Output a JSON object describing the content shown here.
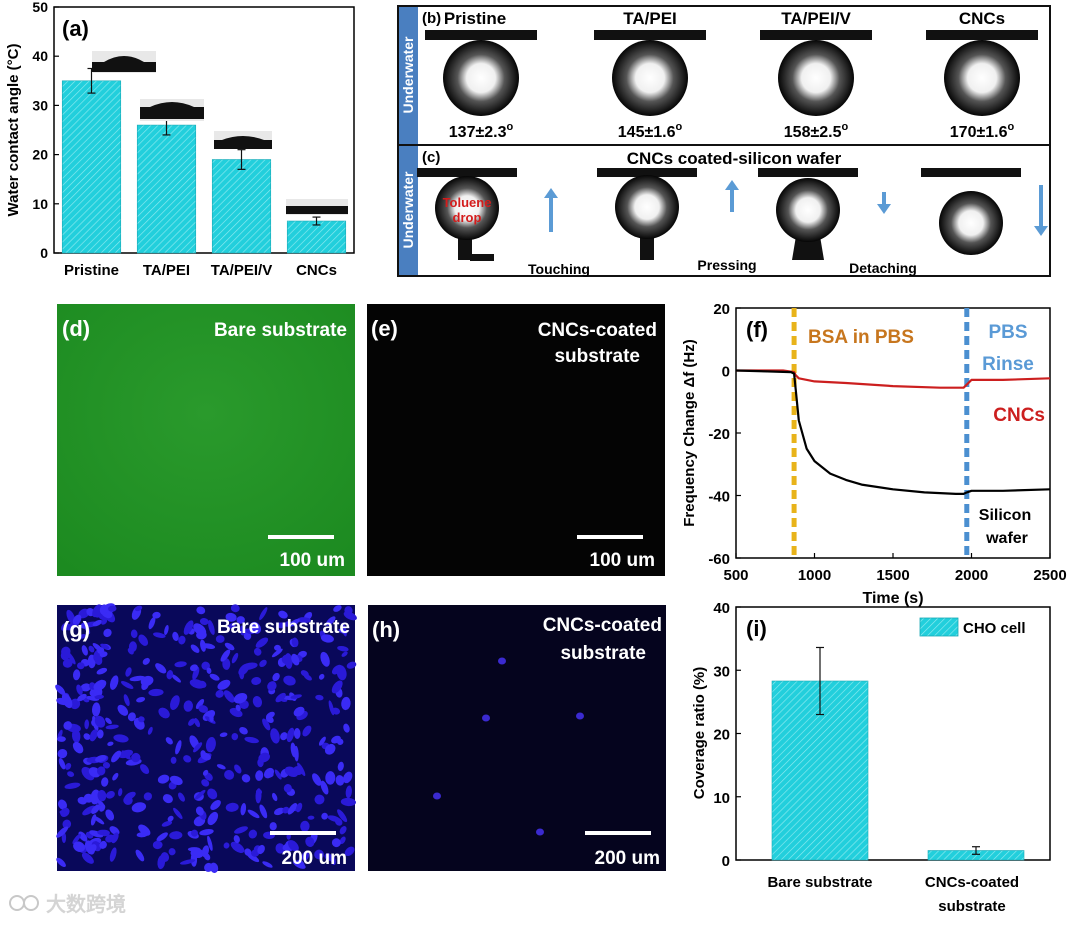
{
  "colors": {
    "cyan": "#22cfdc",
    "green": "#1f8a22",
    "blue_cell": "#2f1ee6",
    "red": "#cc1f1f",
    "orange": "#e8b31a",
    "dot_blue": "#4b8fd0",
    "text_orange": "#c7761e",
    "text_blue": "#5a9ad6"
  },
  "watermark": "大数跨境",
  "chart_data": [
    {
      "id": "a",
      "type": "bar",
      "panel_label": "(a)",
      "ylabel": "Water contact angle (°C)",
      "ylim": [
        0,
        50
      ],
      "yticks": [
        0,
        10,
        20,
        30,
        40,
        50
      ],
      "categories": [
        "Pristine",
        "TA/PEI",
        "TA/PEI/V",
        "CNCs"
      ],
      "values": [
        35,
        26,
        19,
        6.5
      ],
      "errors": [
        2.5,
        2,
        2,
        0.8
      ]
    },
    {
      "id": "b",
      "type": "image-row",
      "panel_label": "(b)",
      "side_label": "Underwater",
      "titles": [
        "Pristine",
        "TA/PEI",
        "TA/PEI/V",
        "CNCs"
      ],
      "angles": [
        "137±2.3",
        "145±1.6",
        "158±2.5",
        "170±1.6"
      ],
      "degree_mark": "o"
    },
    {
      "id": "c",
      "type": "image-row",
      "panel_label": "(c)",
      "side_label": "Underwater",
      "title": "CNCs coated-silicon wafer",
      "drop_label": "Toluene drop",
      "steps": [
        "Touching",
        "Pressing",
        "Detaching"
      ]
    },
    {
      "id": "d",
      "type": "micrograph",
      "panel_label": "(d)",
      "title": "Bare substrate",
      "scale": "100 um"
    },
    {
      "id": "e",
      "type": "micrograph",
      "panel_label": "(e)",
      "title": "CNCs-coated substrate",
      "title_lines": [
        "CNCs-coated",
        "substrate"
      ],
      "scale": "100 um"
    },
    {
      "id": "f",
      "type": "line",
      "panel_label": "(f)",
      "xlabel": "Time (s)",
      "ylabel": "Frequency Change Δf (Hz)",
      "xlim": [
        500,
        2500
      ],
      "ylim": [
        -60,
        20
      ],
      "xticks": [
        500,
        1000,
        1500,
        2000,
        2500
      ],
      "yticks": [
        -60,
        -40,
        -20,
        0,
        20
      ],
      "markers": [
        {
          "x": 870,
          "label": "BSA in PBS"
        },
        {
          "x": 1970,
          "label": "PBS Rinse",
          "lines": [
            "PBS",
            "Rinse"
          ]
        }
      ],
      "series": [
        {
          "name": "CNCs",
          "x": [
            500,
            800,
            870,
            880,
            900,
            1000,
            1200,
            1500,
            1800,
            1950,
            1970,
            2000,
            2200,
            2500
          ],
          "y": [
            0,
            0,
            -0.5,
            -1.5,
            -2.5,
            -3.5,
            -4,
            -5,
            -5.5,
            -5.5,
            -4.5,
            -3,
            -3,
            -2.5
          ]
        },
        {
          "name": "Silicon wafer",
          "lines": [
            "Silicon",
            "wafer"
          ],
          "x": [
            500,
            700,
            850,
            870,
            880,
            900,
            950,
            1000,
            1100,
            1200,
            1300,
            1500,
            1700,
            1900,
            1950,
            1970,
            2000,
            2200,
            2500
          ],
          "y": [
            0,
            -0.3,
            -0.5,
            -1,
            -6,
            -16,
            -25,
            -29,
            -33,
            -35,
            -36.5,
            -38,
            -39,
            -39.5,
            -39.5,
            -39,
            -38.5,
            -38.5,
            -38
          ]
        }
      ]
    },
    {
      "id": "g",
      "type": "micrograph",
      "panel_label": "(g)",
      "title": "Bare substrate",
      "scale": "200 um"
    },
    {
      "id": "h",
      "type": "micrograph",
      "panel_label": "(h)",
      "title": "CNCs-coated substrate",
      "title_lines": [
        "CNCs-coated",
        "substrate"
      ],
      "scale": "200 um"
    },
    {
      "id": "i",
      "type": "bar",
      "panel_label": "(i)",
      "ylabel": "Coverage  ratio (%)",
      "ylim": [
        0,
        40
      ],
      "yticks": [
        0,
        10,
        20,
        30,
        40
      ],
      "categories": [
        "Bare substrate",
        "CNCs-coated substrate"
      ],
      "category_lines": [
        [
          "Bare substrate"
        ],
        [
          "CNCs-coated",
          "substrate"
        ]
      ],
      "legend": "CHO cell",
      "values": [
        28.3,
        1.5
      ],
      "errors": [
        5.3,
        0.6
      ]
    }
  ]
}
